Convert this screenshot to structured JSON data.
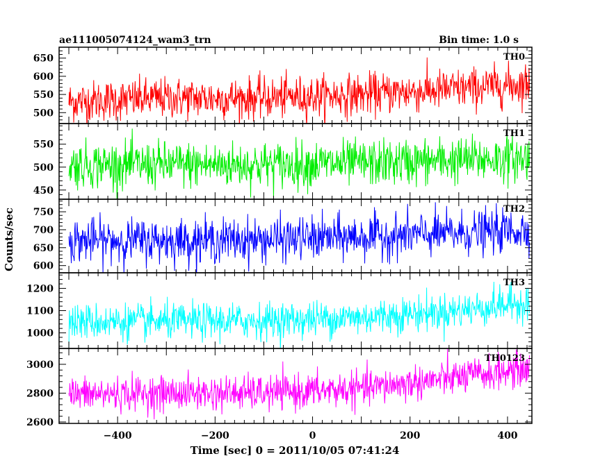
{
  "header": {
    "left": "ae111005074124_wam3_trn",
    "right": "Bin time: 1.0 s"
  },
  "axes": {
    "xlabel": "Time [sec] 0 = 2011/10/05 07:41:24",
    "ylabel": "Counts/sec"
  },
  "chart_data": {
    "type": "line",
    "title": "ae111005074124_wam3_trn",
    "subtitle": "Bin time: 1.0 s",
    "xlabel": "Time [sec] 0 = 2011/10/05 07:41:24",
    "ylabel": "Counts/sec",
    "xlim": [
      -520,
      450
    ],
    "x_ticks": [
      -400,
      -200,
      0,
      200,
      400
    ],
    "x_tick_labels": [
      "−400",
      "−200",
      "0",
      "200",
      "400"
    ],
    "x_data_range": [
      -500,
      445
    ],
    "bin_time_s": 1.0,
    "grid": false,
    "series": [
      {
        "name": "TH0",
        "color": "#ff0000",
        "ylim": [
          470,
          680
        ],
        "yticks": [
          500,
          550,
          600,
          650
        ],
        "trend": [
          [
            -500,
            530
          ],
          [
            -300,
            540
          ],
          [
            -100,
            540
          ],
          [
            100,
            550
          ],
          [
            300,
            565
          ],
          [
            445,
            580
          ]
        ],
        "scatter": 28
      },
      {
        "name": "TH1",
        "color": "#00ee00",
        "ylim": [
          430,
          595
        ],
        "yticks": [
          450,
          500,
          550
        ],
        "trend": [
          [
            -500,
            505
          ],
          [
            -300,
            505
          ],
          [
            -100,
            505
          ],
          [
            100,
            508
          ],
          [
            300,
            515
          ],
          [
            445,
            520
          ]
        ],
        "scatter": 25
      },
      {
        "name": "TH2",
        "color": "#0000ff",
        "ylim": [
          580,
          785
        ],
        "yticks": [
          600,
          650,
          700,
          750
        ],
        "trend": [
          [
            -500,
            670
          ],
          [
            -300,
            670
          ],
          [
            -100,
            672
          ],
          [
            100,
            680
          ],
          [
            300,
            690
          ],
          [
            445,
            700
          ]
        ],
        "scatter": 30
      },
      {
        "name": "TH3",
        "color": "#00ffff",
        "ylim": [
          930,
          1270
        ],
        "yticks": [
          1000,
          1100,
          1200
        ],
        "trend": [
          [
            -500,
            1050
          ],
          [
            -300,
            1050
          ],
          [
            -100,
            1055
          ],
          [
            100,
            1070
          ],
          [
            300,
            1100
          ],
          [
            445,
            1140
          ]
        ],
        "scatter": 40
      },
      {
        "name": "TH0123",
        "color": "#ff00ff",
        "ylim": [
          2590,
          3110
        ],
        "yticks": [
          2600,
          2800,
          3000
        ],
        "trend": [
          [
            -500,
            2790
          ],
          [
            -300,
            2800
          ],
          [
            -100,
            2800
          ],
          [
            100,
            2830
          ],
          [
            300,
            2910
          ],
          [
            445,
            2970
          ]
        ],
        "scatter": 60
      }
    ]
  }
}
